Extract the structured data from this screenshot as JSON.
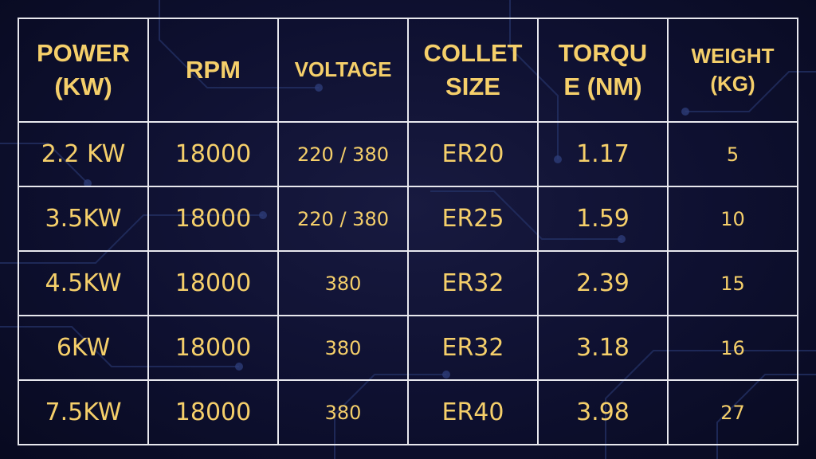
{
  "headers": [
    {
      "line1": "POWER",
      "line2": "(KW)"
    },
    {
      "line1": "RPM",
      "line2": ""
    },
    {
      "line1": "VOLTAGE",
      "line2": ""
    },
    {
      "line1": "COLLET",
      "line2": "SIZE"
    },
    {
      "line1": "TORQU",
      "line2": "E (NM)"
    },
    {
      "line1": "WEIGHT",
      "line2": "(KG)"
    }
  ],
  "rows": [
    [
      "2.2 KW",
      "18000",
      "220 / 380",
      "ER20",
      "1.17",
      "5"
    ],
    [
      "3.5KW",
      "18000",
      "220 / 380",
      "ER25",
      "1.59",
      "10"
    ],
    [
      "4.5KW",
      "18000",
      "380",
      "ER32",
      "2.39",
      "15"
    ],
    [
      "6KW",
      "18000",
      "380",
      "ER32",
      "3.18",
      "16"
    ],
    [
      "7.5KW",
      "18000",
      "380",
      "ER40",
      "3.98",
      "27"
    ]
  ],
  "colors": {
    "text": "#f5cf6a",
    "border": "#e8e8ee",
    "background": "#0c0d26",
    "circuit": "#2a3a7a"
  }
}
